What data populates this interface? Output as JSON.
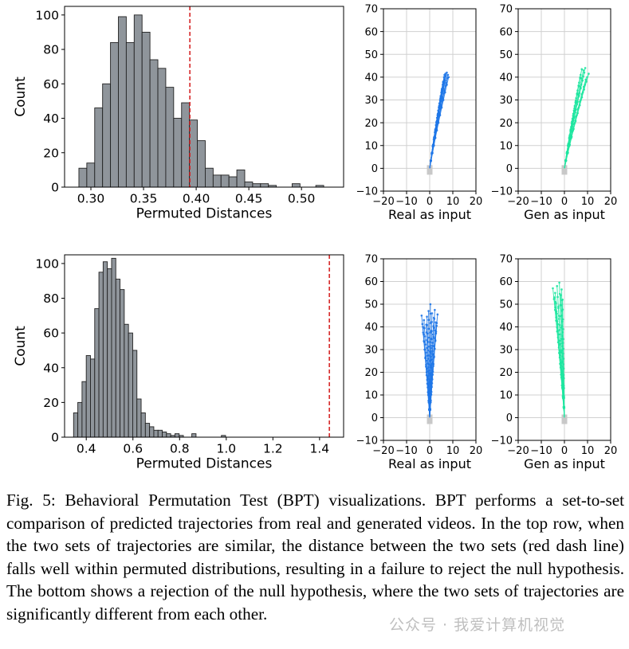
{
  "chart_data": [
    {
      "type": "bar",
      "title": "",
      "xlabel": "Permuted Distances",
      "ylabel": "Count",
      "xlim": [
        0.275,
        0.54
      ],
      "ylim": [
        0,
        105
      ],
      "xticks": [
        "0.30",
        "0.35",
        "0.40",
        "0.45",
        "0.50"
      ],
      "xtick_values": [
        0.3,
        0.35,
        0.4,
        0.45,
        0.5
      ],
      "yticks": [
        "0",
        "20",
        "40",
        "60",
        "80",
        "100"
      ],
      "ytick_values": [
        0,
        20,
        40,
        60,
        80,
        100
      ],
      "bin_edges": [
        0.2886,
        0.2961,
        0.3036,
        0.3111,
        0.3186,
        0.3261,
        0.3336,
        0.3411,
        0.3486,
        0.3561,
        0.3636,
        0.3711,
        0.3786,
        0.3861,
        0.3936,
        0.4011,
        0.4086,
        0.4161,
        0.4236,
        0.4311,
        0.4386,
        0.4461,
        0.4536,
        0.4611,
        0.4686,
        0.4761,
        0.4836,
        0.4911,
        0.4986,
        0.5061,
        0.5136,
        0.5211,
        0.5286
      ],
      "counts": [
        11,
        14,
        46,
        60,
        84,
        99,
        84,
        100,
        90,
        74,
        69,
        58,
        40,
        49,
        39,
        27,
        11,
        7,
        7,
        6,
        10,
        3,
        2,
        2,
        1,
        0,
        0,
        2,
        0,
        0,
        1,
        0
      ],
      "reference_line": {
        "x": 0.394,
        "color": "#d62728",
        "style": "dashed"
      },
      "bar_color": "#8f959b",
      "edge_color": "#222222"
    },
    {
      "type": "line",
      "title": "",
      "xlabel": "Real as input",
      "ylabel": "",
      "xlim": [
        -20,
        20
      ],
      "ylim": [
        -10,
        70
      ],
      "xticks": [
        "−20",
        "−10",
        "0",
        "10",
        "20"
      ],
      "xtick_values": [
        -20,
        -10,
        0,
        10,
        20
      ],
      "yticks": [
        "−10",
        "0",
        "10",
        "20",
        "30",
        "40",
        "50",
        "60",
        "70"
      ],
      "ytick_values": [
        -10,
        0,
        10,
        20,
        30,
        40,
        50,
        60,
        70
      ],
      "grid": true,
      "color": "#1f77e8",
      "start_marker": {
        "x": 0,
        "y": 0,
        "color": "#c8c8c8"
      },
      "endpoints": [
        [
          6.2,
          40
        ],
        [
          6.8,
          41.5
        ],
        [
          7.4,
          42
        ],
        [
          7.9,
          41
        ],
        [
          6.6,
          39
        ],
        [
          7.0,
          40.5
        ],
        [
          5.8,
          38
        ],
        [
          8.2,
          40
        ],
        [
          6.4,
          41
        ],
        [
          7.6,
          39.5
        ]
      ]
    },
    {
      "type": "line",
      "title": "",
      "xlabel": "Gen as input",
      "ylabel": "",
      "xlim": [
        -20,
        20
      ],
      "ylim": [
        -10,
        70
      ],
      "xticks": [
        "−20",
        "−10",
        "0",
        "10",
        "20"
      ],
      "xtick_values": [
        -20,
        -10,
        0,
        10,
        20
      ],
      "yticks": [
        "−10",
        "0",
        "10",
        "20",
        "30",
        "40",
        "50",
        "60",
        "70"
      ],
      "ytick_values": [
        -10,
        0,
        10,
        20,
        30,
        40,
        50,
        60,
        70
      ],
      "grid": true,
      "color": "#1ee6a0",
      "start_marker": {
        "x": 0,
        "y": 0,
        "color": "#c8c8c8"
      },
      "endpoints": [
        [
          7.0,
          41
        ],
        [
          8.2,
          43
        ],
        [
          9.0,
          44
        ],
        [
          9.8,
          40
        ],
        [
          7.8,
          38.5
        ],
        [
          8.6,
          42
        ],
        [
          6.8,
          39.5
        ],
        [
          10.5,
          41.5
        ],
        [
          7.5,
          43.5
        ],
        [
          9.2,
          39
        ]
      ]
    },
    {
      "type": "bar",
      "title": "",
      "xlabel": "Permuted Distances",
      "ylabel": "Count",
      "xlim": [
        0.307,
        1.503
      ],
      "ylim": [
        0,
        105
      ],
      "xticks": [
        "0.4",
        "0.6",
        "0.8",
        "1.0",
        "1.2",
        "1.4"
      ],
      "xtick_values": [
        0.4,
        0.6,
        0.8,
        1.0,
        1.2,
        1.4
      ],
      "yticks": [
        "0",
        "20",
        "40",
        "60",
        "80",
        "100"
      ],
      "ytick_values": [
        0,
        20,
        40,
        60,
        80,
        100
      ],
      "bin_edges": [
        0.3456,
        0.3637,
        0.3818,
        0.3999,
        0.418,
        0.4361,
        0.4542,
        0.4723,
        0.4904,
        0.5085,
        0.5266,
        0.5447,
        0.5628,
        0.5809,
        0.599,
        0.6171,
        0.6352,
        0.6533,
        0.6714,
        0.6895,
        0.7076,
        0.7257,
        0.7438,
        0.7619,
        0.78,
        0.7981,
        0.8162,
        0.8343,
        0.8524,
        0.8705,
        0.8886,
        0.9067,
        0.9248,
        0.9429,
        0.961,
        0.9791,
        0.9972
      ],
      "counts": [
        14,
        20,
        32,
        47,
        45,
        74,
        95,
        101,
        97,
        103,
        91,
        85,
        65,
        60,
        50,
        22,
        14,
        8,
        6,
        4,
        4,
        3,
        2,
        1,
        2,
        1,
        0,
        0,
        2,
        0,
        0,
        0,
        0,
        0,
        0,
        1
      ],
      "reference_line": {
        "x": 1.442,
        "color": "#d62728",
        "style": "dashed"
      },
      "bar_color": "#8f959b",
      "edge_color": "#222222"
    },
    {
      "type": "line",
      "title": "",
      "xlabel": "Real as input",
      "ylabel": "",
      "xlim": [
        -20,
        20
      ],
      "ylim": [
        -10,
        70
      ],
      "xticks": [
        "−20",
        "−10",
        "0",
        "10",
        "20"
      ],
      "xtick_values": [
        -20,
        -10,
        0,
        10,
        20
      ],
      "yticks": [
        "−10",
        "0",
        "10",
        "20",
        "30",
        "40",
        "50",
        "60",
        "70"
      ],
      "ytick_values": [
        -10,
        0,
        10,
        20,
        30,
        40,
        50,
        60,
        70
      ],
      "grid": true,
      "color": "#1f77e8",
      "start_marker": {
        "x": 0,
        "y": 0,
        "color": "#c8c8c8"
      },
      "endpoints": [
        [
          -3.5,
          45
        ],
        [
          -2.5,
          43
        ],
        [
          -1.5,
          41
        ],
        [
          -0.5,
          47
        ],
        [
          0.3,
          50
        ],
        [
          1.0,
          46
        ],
        [
          1.8,
          44
        ],
        [
          2.6,
          42
        ],
        [
          3.4,
          45.5
        ],
        [
          -2.9,
          40
        ],
        [
          0.8,
          38
        ],
        [
          2.2,
          47.5
        ],
        [
          -1.2,
          44.5
        ],
        [
          3.0,
          40.5
        ]
      ]
    },
    {
      "type": "line",
      "title": "",
      "xlabel": "Gen as input",
      "ylabel": "",
      "xlim": [
        -20,
        20
      ],
      "ylim": [
        -10,
        70
      ],
      "xticks": [
        "−20",
        "−10",
        "0",
        "10",
        "20"
      ],
      "xtick_values": [
        -20,
        -10,
        0,
        10,
        20
      ],
      "yticks": [
        "−10",
        "0",
        "10",
        "20",
        "30",
        "40",
        "50",
        "60",
        "70"
      ],
      "ytick_values": [
        -10,
        0,
        10,
        20,
        30,
        40,
        50,
        60,
        70
      ],
      "grid": true,
      "color": "#1ee6a0",
      "start_marker": {
        "x": 0,
        "y": 0,
        "color": "#c8c8c8"
      },
      "endpoints": [
        [
          -5.0,
          57
        ],
        [
          -4.0,
          55
        ],
        [
          -3.2,
          58
        ],
        [
          -2.2,
          59.5
        ],
        [
          -1.6,
          54
        ],
        [
          -0.8,
          52
        ],
        [
          -3.8,
          51
        ],
        [
          -2.6,
          49
        ],
        [
          -4.4,
          53
        ],
        [
          -1.2,
          56.5
        ]
      ]
    }
  ],
  "caption": "Fig. 5: Behavioral Permutation Test (BPT) visualizations. BPT performs a set-to-set comparison of predicted trajectories from real and generated videos. In the top row, when the two sets of trajectories are similar, the distance between the two sets (red dash line) falls well within permuted distributions, resulting in a failure to reject the null hypothesis. The bottom shows a rejection of the null hypothesis, where the two sets of trajectories are significantly different from each other.",
  "watermark": "公众号 · 我爱计算机视觉"
}
